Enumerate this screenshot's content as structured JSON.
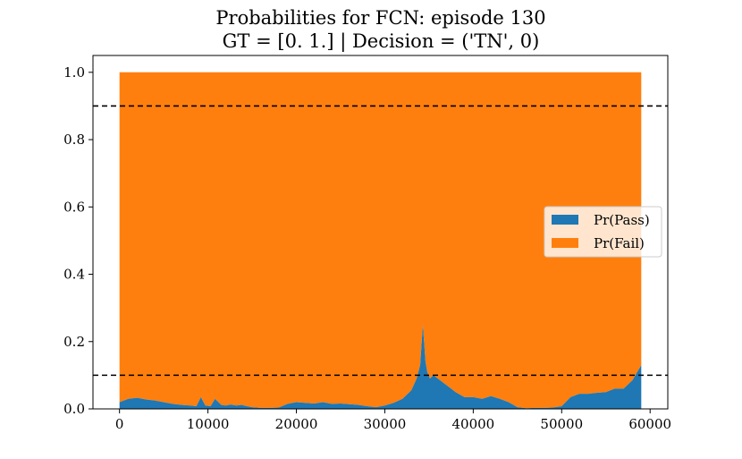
{
  "chart_data": {
    "type": "area",
    "title": "Probabilities for FCN: episode 130",
    "subtitle": "GT = [0. 1.] | Decision = ('TN', 0)",
    "xlabel": "",
    "ylabel": "",
    "xlim": [
      -3000,
      62000
    ],
    "ylim": [
      0,
      1.05
    ],
    "x_ticks": [
      0,
      10000,
      20000,
      30000,
      40000,
      50000,
      60000
    ],
    "x_tick_labels": [
      "0",
      "10000",
      "20000",
      "30000",
      "40000",
      "50000",
      "60000"
    ],
    "y_ticks": [
      0,
      0.2,
      0.4,
      0.6,
      0.8,
      1.0
    ],
    "y_tick_labels": [
      "0.0",
      "0.2",
      "0.4",
      "0.6",
      "0.8",
      "1.0"
    ],
    "grid": false,
    "legend_position": "center-right",
    "thresholds": [
      0.9,
      0.1
    ],
    "series": [
      {
        "name": "Pr(Pass)",
        "color": "#1f77b4",
        "x": [
          0,
          1000,
          2000,
          3000,
          4000,
          5000,
          6000,
          7000,
          8000,
          8700,
          9200,
          9700,
          10300,
          10800,
          11500,
          12000,
          12600,
          13200,
          13800,
          14400,
          15000,
          16000,
          17000,
          18000,
          19000,
          20000,
          21000,
          22000,
          23000,
          24000,
          25000,
          26000,
          27000,
          28000,
          29000,
          30000,
          31000,
          32000,
          33000,
          33600,
          34000,
          34300,
          34600,
          34800,
          35100,
          35500,
          36000,
          37000,
          38000,
          39000,
          40000,
          41000,
          42000,
          43000,
          44000,
          45000,
          46000,
          47000,
          48000,
          49000,
          50000,
          51000,
          52000,
          53000,
          54000,
          55000,
          56000,
          57000,
          58000,
          59000
        ],
        "values": [
          0.02,
          0.03,
          0.033,
          0.028,
          0.025,
          0.02,
          0.015,
          0.012,
          0.01,
          0.008,
          0.035,
          0.01,
          0.008,
          0.03,
          0.012,
          0.01,
          0.013,
          0.01,
          0.012,
          0.008,
          0.005,
          0.003,
          0.003,
          0.004,
          0.015,
          0.02,
          0.018,
          0.016,
          0.02,
          0.015,
          0.016,
          0.014,
          0.012,
          0.008,
          0.005,
          0.01,
          0.018,
          0.03,
          0.055,
          0.09,
          0.13,
          0.25,
          0.14,
          0.11,
          0.09,
          0.1,
          0.09,
          0.07,
          0.05,
          0.035,
          0.035,
          0.03,
          0.038,
          0.03,
          0.02,
          0.005,
          0.002,
          0.003,
          0.003,
          0.004,
          0.008,
          0.035,
          0.045,
          0.045,
          0.048,
          0.05,
          0.06,
          0.06,
          0.085,
          0.13
        ]
      },
      {
        "name": "Pr(Fail)",
        "color": "#ff7f0e",
        "stacked_total": 1.0
      }
    ]
  }
}
